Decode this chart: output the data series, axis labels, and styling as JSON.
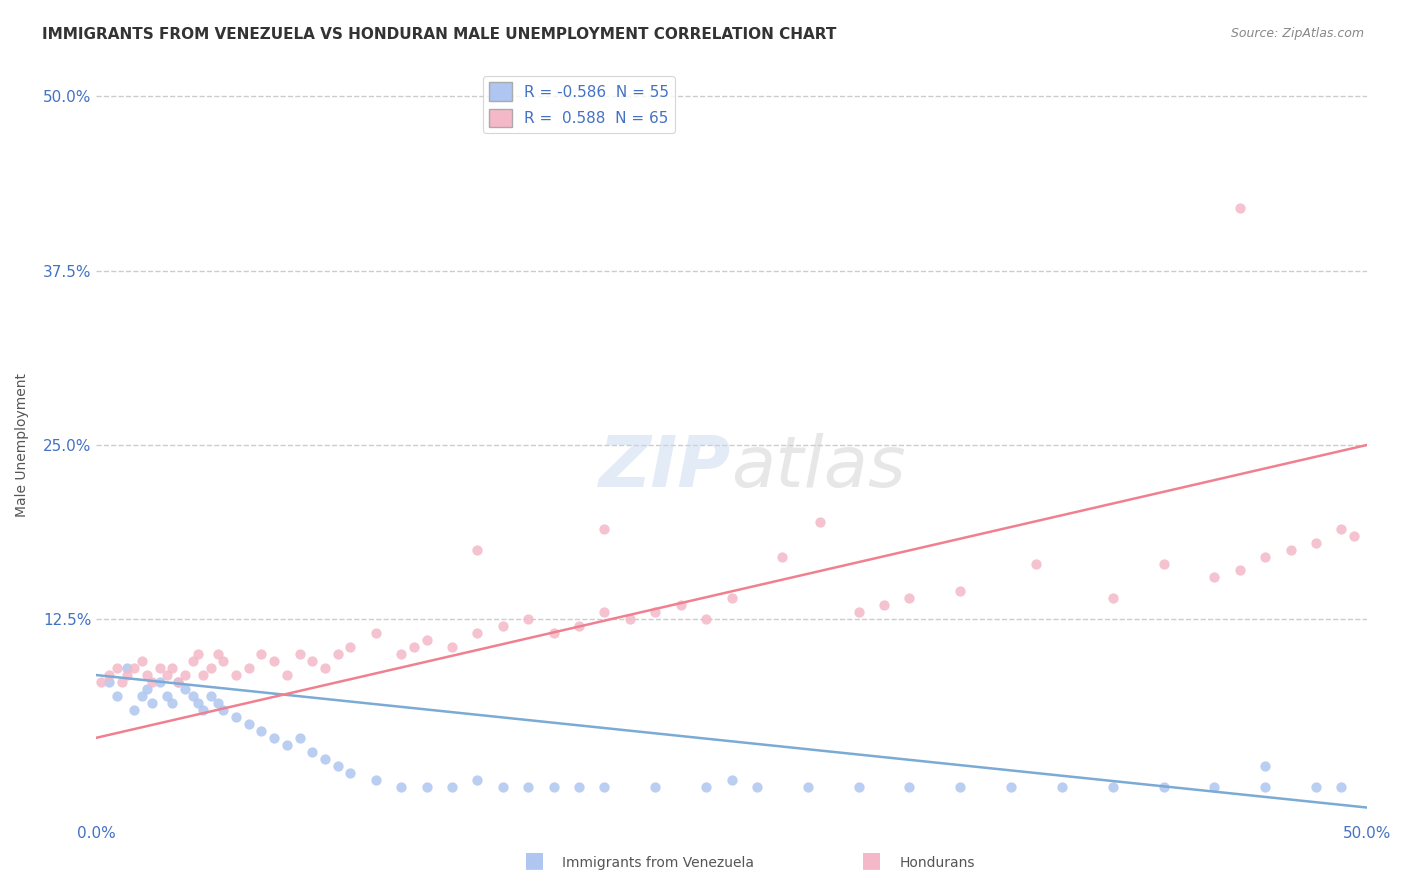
{
  "title": "IMMIGRANTS FROM VENEZUELA VS HONDURAN MALE UNEMPLOYMENT CORRELATION CHART",
  "source": "Source: ZipAtlas.com",
  "xlabel": "",
  "ylabel": "Male Unemployment",
  "xlim": [
    0.0,
    0.5
  ],
  "ylim": [
    -0.02,
    0.52
  ],
  "yticks": [
    0.0,
    0.125,
    0.25,
    0.375,
    0.5
  ],
  "ytick_labels": [
    "",
    "12.5%",
    "25.0%",
    "37.5%",
    "50.0%"
  ],
  "xticks": [
    0.0,
    0.5
  ],
  "xtick_labels": [
    "0.0%",
    "50.0%"
  ],
  "legend_entries": [
    {
      "label": "R = -0.586  N = 55",
      "color": "#aec6f0"
    },
    {
      "label": "R =  0.588  N = 65",
      "color": "#f4b8c8"
    }
  ],
  "legend_label1": "Immigrants from Venezuela",
  "legend_label2": "Hondurans",
  "blue_scatter": [
    [
      0.005,
      0.08
    ],
    [
      0.008,
      0.07
    ],
    [
      0.012,
      0.09
    ],
    [
      0.015,
      0.06
    ],
    [
      0.018,
      0.07
    ],
    [
      0.02,
      0.075
    ],
    [
      0.022,
      0.065
    ],
    [
      0.025,
      0.08
    ],
    [
      0.028,
      0.07
    ],
    [
      0.03,
      0.065
    ],
    [
      0.032,
      0.08
    ],
    [
      0.035,
      0.075
    ],
    [
      0.038,
      0.07
    ],
    [
      0.04,
      0.065
    ],
    [
      0.042,
      0.06
    ],
    [
      0.045,
      0.07
    ],
    [
      0.048,
      0.065
    ],
    [
      0.05,
      0.06
    ],
    [
      0.055,
      0.055
    ],
    [
      0.06,
      0.05
    ],
    [
      0.065,
      0.045
    ],
    [
      0.07,
      0.04
    ],
    [
      0.075,
      0.035
    ],
    [
      0.08,
      0.04
    ],
    [
      0.085,
      0.03
    ],
    [
      0.09,
      0.025
    ],
    [
      0.095,
      0.02
    ],
    [
      0.1,
      0.015
    ],
    [
      0.11,
      0.01
    ],
    [
      0.12,
      0.005
    ],
    [
      0.13,
      0.005
    ],
    [
      0.14,
      0.005
    ],
    [
      0.15,
      0.01
    ],
    [
      0.16,
      0.005
    ],
    [
      0.17,
      0.005
    ],
    [
      0.18,
      0.005
    ],
    [
      0.19,
      0.005
    ],
    [
      0.2,
      0.005
    ],
    [
      0.22,
      0.005
    ],
    [
      0.24,
      0.005
    ],
    [
      0.25,
      0.01
    ],
    [
      0.26,
      0.005
    ],
    [
      0.28,
      0.005
    ],
    [
      0.3,
      0.005
    ],
    [
      0.32,
      0.005
    ],
    [
      0.34,
      0.005
    ],
    [
      0.36,
      0.005
    ],
    [
      0.38,
      0.005
    ],
    [
      0.4,
      0.005
    ],
    [
      0.42,
      0.005
    ],
    [
      0.44,
      0.005
    ],
    [
      0.46,
      0.005
    ],
    [
      0.46,
      0.02
    ],
    [
      0.48,
      0.005
    ],
    [
      0.49,
      0.005
    ]
  ],
  "pink_scatter": [
    [
      0.002,
      0.08
    ],
    [
      0.005,
      0.085
    ],
    [
      0.008,
      0.09
    ],
    [
      0.01,
      0.08
    ],
    [
      0.012,
      0.085
    ],
    [
      0.015,
      0.09
    ],
    [
      0.018,
      0.095
    ],
    [
      0.02,
      0.085
    ],
    [
      0.022,
      0.08
    ],
    [
      0.025,
      0.09
    ],
    [
      0.028,
      0.085
    ],
    [
      0.03,
      0.09
    ],
    [
      0.032,
      0.08
    ],
    [
      0.035,
      0.085
    ],
    [
      0.038,
      0.095
    ],
    [
      0.04,
      0.1
    ],
    [
      0.042,
      0.085
    ],
    [
      0.045,
      0.09
    ],
    [
      0.048,
      0.1
    ],
    [
      0.05,
      0.095
    ],
    [
      0.055,
      0.085
    ],
    [
      0.06,
      0.09
    ],
    [
      0.065,
      0.1
    ],
    [
      0.07,
      0.095
    ],
    [
      0.075,
      0.085
    ],
    [
      0.08,
      0.1
    ],
    [
      0.085,
      0.095
    ],
    [
      0.09,
      0.09
    ],
    [
      0.095,
      0.1
    ],
    [
      0.1,
      0.105
    ],
    [
      0.11,
      0.115
    ],
    [
      0.12,
      0.1
    ],
    [
      0.125,
      0.105
    ],
    [
      0.13,
      0.11
    ],
    [
      0.14,
      0.105
    ],
    [
      0.15,
      0.115
    ],
    [
      0.16,
      0.12
    ],
    [
      0.17,
      0.125
    ],
    [
      0.18,
      0.115
    ],
    [
      0.19,
      0.12
    ],
    [
      0.2,
      0.13
    ],
    [
      0.21,
      0.125
    ],
    [
      0.22,
      0.13
    ],
    [
      0.23,
      0.135
    ],
    [
      0.24,
      0.125
    ],
    [
      0.25,
      0.14
    ],
    [
      0.27,
      0.17
    ],
    [
      0.285,
      0.195
    ],
    [
      0.3,
      0.13
    ],
    [
      0.31,
      0.135
    ],
    [
      0.32,
      0.14
    ],
    [
      0.34,
      0.145
    ],
    [
      0.37,
      0.165
    ],
    [
      0.4,
      0.14
    ],
    [
      0.42,
      0.165
    ],
    [
      0.44,
      0.155
    ],
    [
      0.45,
      0.16
    ],
    [
      0.46,
      0.17
    ],
    [
      0.47,
      0.175
    ],
    [
      0.48,
      0.18
    ],
    [
      0.49,
      0.19
    ],
    [
      0.495,
      0.185
    ],
    [
      0.45,
      0.42
    ],
    [
      0.2,
      0.19
    ],
    [
      0.15,
      0.175
    ]
  ],
  "blue_line_x": [
    0.0,
    0.5
  ],
  "blue_line_y": [
    0.085,
    -0.01
  ],
  "pink_line_x": [
    0.0,
    0.5
  ],
  "pink_line_y": [
    0.04,
    0.25
  ],
  "blue_color": "#aec6f0",
  "pink_color": "#f4b8c8",
  "blue_line_color": "#7baad4",
  "pink_line_color": "#f08090",
  "watermark": "ZIPatlas",
  "background_color": "#ffffff",
  "title_color": "#333333",
  "axis_label_color": "#555555",
  "tick_label_color": "#4472c4",
  "grid_color": "#cccccc",
  "title_fontsize": 11,
  "axis_label_fontsize": 10,
  "tick_fontsize": 11,
  "legend_fontsize": 11
}
